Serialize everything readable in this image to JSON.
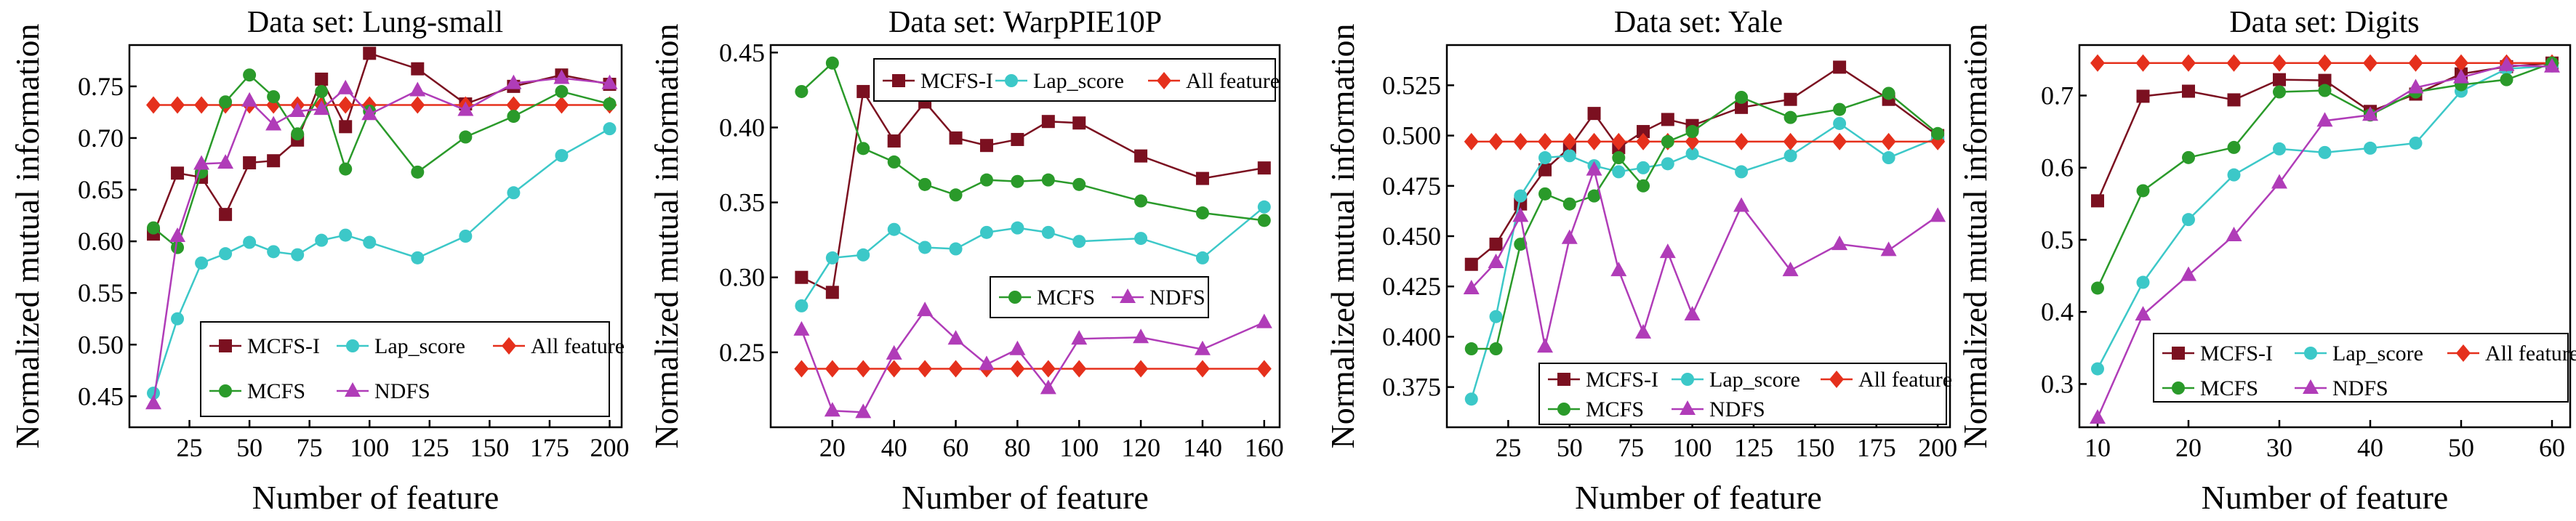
{
  "figure": {
    "colors": {
      "MCFS-I": "#7b1020",
      "Lap_score": "#3cc8c8",
      "All feature": "#e5301c",
      "MCFS": "#2a9a2a",
      "NDFS": "#b03cb8"
    },
    "markers": {
      "MCFS-I": "square",
      "Lap_score": "circle",
      "All feature": "diamond",
      "MCFS": "circle",
      "NDFS": "triangle"
    }
  },
  "chart_data": [
    {
      "type": "line",
      "title": "Data set: Lung-small",
      "xlabel": "Number of feature",
      "ylabel": "Normalized mutual information",
      "xlim": [
        0,
        205
      ],
      "ylim": [
        0.42,
        0.79
      ],
      "xticks": [
        25,
        50,
        75,
        100,
        125,
        150,
        175,
        200
      ],
      "xtick_labels": [
        "25",
        "50",
        "75",
        "100",
        "125",
        "150",
        "175",
        "200"
      ],
      "yticks": [
        0.45,
        0.5,
        0.55,
        0.6,
        0.65,
        0.7,
        0.75
      ],
      "ytick_labels": [
        "0.45",
        "0.50",
        "0.55",
        "0.60",
        "0.65",
        "0.70",
        "0.75"
      ],
      "legend": {
        "position": "bottom-center",
        "rows": [
          [
            "MCFS-I",
            "Lap_score",
            "All feature"
          ],
          [
            "MCFS",
            "NDFS"
          ]
        ]
      },
      "series": [
        {
          "name": "MCFS-I",
          "x": [
            10,
            20,
            30,
            40,
            50,
            60,
            70,
            80,
            90,
            100,
            120,
            140,
            160,
            180,
            200
          ],
          "values": [
            0.607,
            0.666,
            0.662,
            0.626,
            0.676,
            0.678,
            0.698,
            0.757,
            0.711,
            0.782,
            0.767,
            0.733,
            0.75,
            0.761,
            0.752
          ]
        },
        {
          "name": "Lap_score",
          "x": [
            10,
            20,
            30,
            40,
            50,
            60,
            70,
            80,
            90,
            100,
            120,
            140,
            160,
            180,
            200
          ],
          "values": [
            0.453,
            0.525,
            0.579,
            0.588,
            0.599,
            0.59,
            0.587,
            0.601,
            0.606,
            0.599,
            0.584,
            0.605,
            0.647,
            0.683,
            0.709
          ]
        },
        {
          "name": "All feature",
          "x": [
            10,
            20,
            30,
            40,
            50,
            60,
            70,
            80,
            90,
            100,
            120,
            140,
            160,
            180,
            200
          ],
          "values": [
            0.732,
            0.732,
            0.732,
            0.732,
            0.732,
            0.732,
            0.732,
            0.732,
            0.732,
            0.732,
            0.732,
            0.732,
            0.732,
            0.732,
            0.732
          ]
        },
        {
          "name": "MCFS",
          "x": [
            10,
            20,
            30,
            40,
            50,
            60,
            70,
            80,
            90,
            100,
            120,
            140,
            160,
            180,
            200
          ],
          "values": [
            0.613,
            0.594,
            0.667,
            0.735,
            0.761,
            0.74,
            0.704,
            0.745,
            0.67,
            0.726,
            0.667,
            0.701,
            0.721,
            0.745,
            0.733
          ]
        },
        {
          "name": "NDFS",
          "x": [
            10,
            20,
            30,
            40,
            50,
            60,
            70,
            80,
            90,
            100,
            120,
            140,
            160,
            180,
            200
          ],
          "values": [
            0.443,
            0.605,
            0.675,
            0.676,
            0.736,
            0.713,
            0.726,
            0.728,
            0.748,
            0.723,
            0.746,
            0.727,
            0.753,
            0.758,
            0.753
          ]
        }
      ]
    },
    {
      "type": "line",
      "title": "Data set: WarpPIE10P",
      "xlabel": "Number of feature",
      "ylabel": "Normalized mutual information",
      "xlim": [
        0,
        165
      ],
      "ylim": [
        0.2,
        0.455
      ],
      "xticks": [
        20,
        40,
        60,
        80,
        100,
        120,
        140,
        160
      ],
      "xtick_labels": [
        "20",
        "40",
        "60",
        "80",
        "100",
        "120",
        "140",
        "160"
      ],
      "yticks": [
        0.25,
        0.3,
        0.35,
        0.4,
        0.45
      ],
      "ytick_labels": [
        "0.25",
        "0.30",
        "0.35",
        "0.40",
        "0.45"
      ],
      "legend": {
        "position": "split: top-right and middle-right",
        "rows": [
          [
            "MCFS-I",
            "Lap_score",
            "All feature"
          ],
          [
            "MCFS",
            "NDFS"
          ]
        ]
      },
      "series": [
        {
          "name": "MCFS-I",
          "x": [
            10,
            20,
            30,
            40,
            50,
            60,
            70,
            80,
            90,
            100,
            120,
            140,
            160
          ],
          "values": [
            0.3,
            0.29,
            0.424,
            0.391,
            0.417,
            0.393,
            0.388,
            0.392,
            0.404,
            0.403,
            0.381,
            0.366,
            0.373
          ]
        },
        {
          "name": "Lap_score",
          "x": [
            10,
            20,
            30,
            40,
            50,
            60,
            70,
            80,
            90,
            100,
            120,
            140,
            160
          ],
          "values": [
            0.281,
            0.313,
            0.315,
            0.332,
            0.32,
            0.319,
            0.33,
            0.333,
            0.33,
            0.324,
            0.326,
            0.313,
            0.347
          ]
        },
        {
          "name": "All feature",
          "x": [
            10,
            20,
            30,
            40,
            50,
            60,
            70,
            80,
            90,
            100,
            120,
            140,
            160
          ],
          "values": [
            0.239,
            0.239,
            0.239,
            0.239,
            0.239,
            0.239,
            0.239,
            0.239,
            0.239,
            0.239,
            0.239,
            0.239,
            0.239
          ]
        },
        {
          "name": "MCFS",
          "x": [
            10,
            20,
            30,
            40,
            50,
            60,
            70,
            80,
            90,
            100,
            120,
            140,
            160
          ],
          "values": [
            0.424,
            0.443,
            0.386,
            0.377,
            0.362,
            0.355,
            0.365,
            0.364,
            0.365,
            0.362,
            0.351,
            0.343,
            0.338
          ]
        },
        {
          "name": "NDFS",
          "x": [
            10,
            20,
            30,
            40,
            50,
            60,
            70,
            80,
            90,
            100,
            120,
            140,
            160
          ],
          "values": [
            0.265,
            0.211,
            0.21,
            0.249,
            0.278,
            0.259,
            0.242,
            0.252,
            0.226,
            0.259,
            0.26,
            0.252,
            0.27
          ]
        }
      ]
    },
    {
      "type": "line",
      "title": "Data set: Yale",
      "xlabel": "Number of feature",
      "ylabel": "Normalized mutual information",
      "xlim": [
        0,
        205
      ],
      "ylim": [
        0.355,
        0.545
      ],
      "xticks": [
        25,
        50,
        75,
        100,
        125,
        150,
        175,
        200
      ],
      "xtick_labels": [
        "25",
        "50",
        "75",
        "100",
        "125",
        "150",
        "175",
        "200"
      ],
      "yticks": [
        0.375,
        0.4,
        0.425,
        0.45,
        0.475,
        0.5,
        0.525
      ],
      "ytick_labels": [
        "0.375",
        "0.400",
        "0.425",
        "0.450",
        "0.475",
        "0.500",
        "0.525"
      ],
      "legend": {
        "position": "bottom-right",
        "rows": [
          [
            "MCFS-I",
            "Lap_score",
            "All feature"
          ],
          [
            "MCFS",
            "NDFS"
          ]
        ]
      },
      "series": [
        {
          "name": "MCFS-I",
          "x": [
            10,
            20,
            30,
            40,
            50,
            60,
            70,
            80,
            90,
            100,
            120,
            140,
            160,
            180,
            200
          ],
          "values": [
            0.436,
            0.446,
            0.466,
            0.483,
            0.494,
            0.511,
            0.494,
            0.502,
            0.508,
            0.505,
            0.514,
            0.518,
            0.534,
            0.518,
            0.5
          ]
        },
        {
          "name": "Lap_score",
          "x": [
            10,
            20,
            30,
            40,
            50,
            60,
            70,
            80,
            90,
            100,
            120,
            140,
            160,
            180,
            200
          ],
          "values": [
            0.369,
            0.41,
            0.47,
            0.489,
            0.49,
            0.485,
            0.482,
            0.484,
            0.486,
            0.491,
            0.482,
            0.49,
            0.506,
            0.489,
            0.499
          ]
        },
        {
          "name": "All feature",
          "x": [
            10,
            20,
            30,
            40,
            50,
            60,
            70,
            80,
            90,
            100,
            120,
            140,
            160,
            180,
            200
          ],
          "values": [
            0.497,
            0.497,
            0.497,
            0.497,
            0.497,
            0.497,
            0.497,
            0.497,
            0.497,
            0.497,
            0.497,
            0.497,
            0.497,
            0.497,
            0.497
          ]
        },
        {
          "name": "MCFS",
          "x": [
            10,
            20,
            30,
            40,
            50,
            60,
            70,
            80,
            90,
            100,
            120,
            140,
            160,
            180,
            200
          ],
          "values": [
            0.394,
            0.394,
            0.446,
            0.471,
            0.466,
            0.47,
            0.489,
            0.475,
            0.497,
            0.502,
            0.519,
            0.509,
            0.513,
            0.521,
            0.501
          ]
        },
        {
          "name": "NDFS",
          "x": [
            10,
            20,
            30,
            40,
            50,
            60,
            70,
            80,
            90,
            100,
            120,
            140,
            160,
            180,
            200
          ],
          "values": [
            0.424,
            0.437,
            0.46,
            0.395,
            0.449,
            0.483,
            0.433,
            0.402,
            0.442,
            0.411,
            0.465,
            0.433,
            0.446,
            0.443,
            0.46
          ]
        }
      ]
    },
    {
      "type": "line",
      "title": "Data set: Digits",
      "xlabel": "Number of feature",
      "ylabel": "Normalized mutual information",
      "xlim": [
        8,
        62
      ],
      "ylim": [
        0.24,
        0.77
      ],
      "xticks": [
        10,
        20,
        30,
        40,
        50,
        60
      ],
      "xtick_labels": [
        "10",
        "20",
        "30",
        "40",
        "50",
        "60"
      ],
      "yticks": [
        0.3,
        0.4,
        0.5,
        0.6,
        0.7
      ],
      "ytick_labels": [
        "0.3",
        "0.4",
        "0.5",
        "0.6",
        "0.7"
      ],
      "legend": {
        "position": "bottom-right",
        "rows": [
          [
            "MCFS-I",
            "Lap_score",
            "All feature"
          ],
          [
            "MCFS",
            "NDFS"
          ]
        ]
      },
      "series": [
        {
          "name": "MCFS-I",
          "x": [
            10,
            15,
            20,
            25,
            30,
            35,
            40,
            45,
            50,
            55,
            60
          ],
          "values": [
            0.554,
            0.699,
            0.706,
            0.694,
            0.722,
            0.721,
            0.678,
            0.702,
            0.73,
            0.74,
            0.745
          ]
        },
        {
          "name": "Lap_score",
          "x": [
            10,
            15,
            20,
            25,
            30,
            35,
            40,
            45,
            50,
            55,
            60
          ],
          "values": [
            0.321,
            0.441,
            0.528,
            0.59,
            0.626,
            0.621,
            0.627,
            0.634,
            0.706,
            0.737,
            0.741
          ]
        },
        {
          "name": "All feature",
          "x": [
            10,
            15,
            20,
            25,
            30,
            35,
            40,
            45,
            50,
            55,
            60
          ],
          "values": [
            0.745,
            0.745,
            0.745,
            0.745,
            0.745,
            0.745,
            0.745,
            0.745,
            0.745,
            0.745,
            0.745
          ]
        },
        {
          "name": "MCFS",
          "x": [
            10,
            15,
            20,
            25,
            30,
            35,
            40,
            45,
            50,
            55,
            60
          ],
          "values": [
            0.433,
            0.568,
            0.614,
            0.628,
            0.705,
            0.707,
            0.673,
            0.705,
            0.715,
            0.722,
            0.745
          ]
        },
        {
          "name": "NDFS",
          "x": [
            10,
            15,
            20,
            25,
            30,
            35,
            40,
            45,
            50,
            55,
            60
          ],
          "values": [
            0.253,
            0.396,
            0.451,
            0.506,
            0.579,
            0.665,
            0.673,
            0.711,
            0.725,
            0.742,
            0.74
          ]
        }
      ]
    }
  ]
}
